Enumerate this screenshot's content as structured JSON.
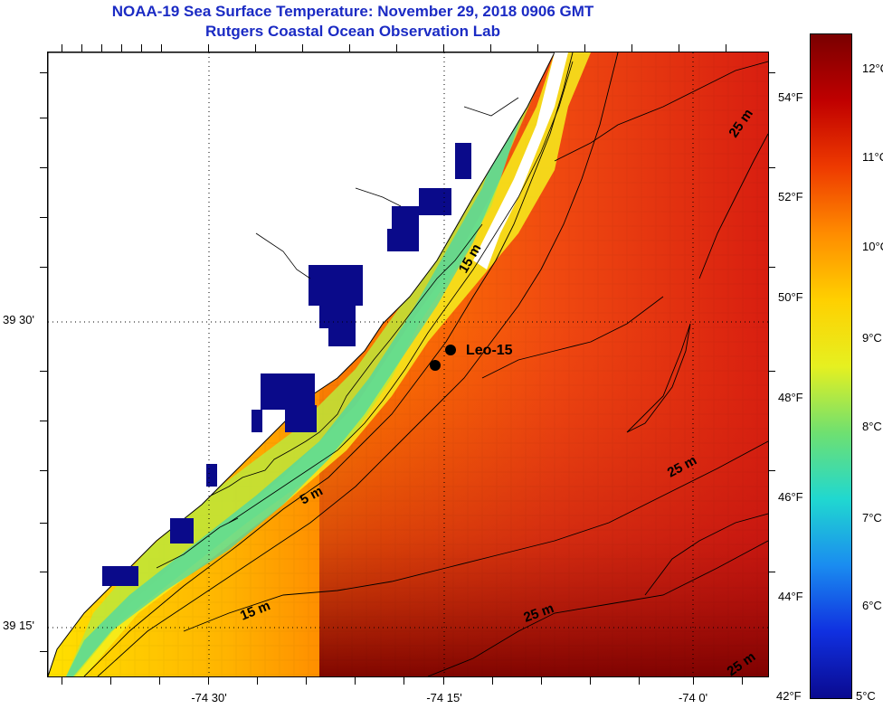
{
  "title": {
    "line1": "NOAA-19 Sea Surface Temperature:  November 29, 2018 0906 GMT",
    "line2": "Rutgers Coastal Ocean Observation Lab"
  },
  "map": {
    "lat_labels": [
      "39 30'",
      "39 15'"
    ],
    "lon_labels": [
      "-74 30'",
      "-74 15'",
      "-74 0'"
    ],
    "station_label": "Leo-15",
    "contour_labels": [
      "5 m",
      "15 m",
      "15 m",
      "25 m",
      "25 m",
      "25 m",
      "25 m"
    ]
  },
  "colorbar": {
    "celsius_labels": [
      "12°C",
      "11°C",
      "10°C",
      "9°C",
      "8°C",
      "7°C",
      "6°C",
      "5°C"
    ],
    "fahrenheit_labels": [
      "54°F",
      "52°F",
      "50°F",
      "48°F",
      "46°F",
      "44°F",
      "42°F"
    ],
    "colors": [
      "#7a0000",
      "#c00000",
      "#ee3a00",
      "#ff8c00",
      "#ffd000",
      "#e6f020",
      "#6fe070",
      "#20d8d0",
      "#1a8cf0",
      "#1030e0",
      "#0a0a90"
    ]
  }
}
